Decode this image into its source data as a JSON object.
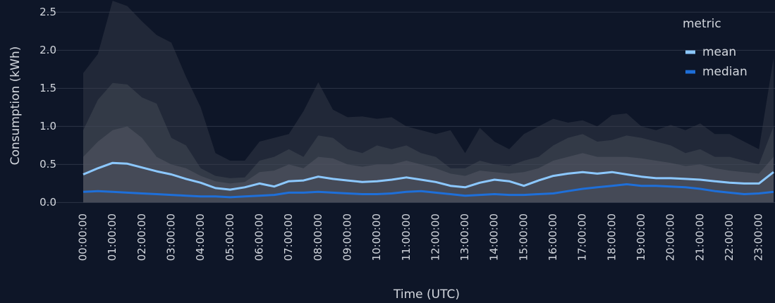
{
  "chart_data": {
    "type": "line",
    "x_label": "Time (UTC)",
    "y_label": "Consumption (kWh)",
    "categories": [
      "00:00:00",
      null,
      "01:00:00",
      null,
      "02:00:00",
      null,
      "03:00:00",
      null,
      "04:00:00",
      null,
      "05:00:00",
      null,
      "06:00:00",
      null,
      "07:00:00",
      null,
      "08:00:00",
      null,
      "09:00:00",
      null,
      "10:00:00",
      null,
      "11:00:00",
      null,
      "12:00:00",
      null,
      "13:00:00",
      null,
      "14:00:00",
      null,
      "15:00:00",
      null,
      "16:00:00",
      null,
      "17:00:00",
      null,
      "18:00:00",
      null,
      "19:00:00",
      null,
      "20:00:00",
      null,
      "21:00:00",
      null,
      "22:00:00",
      null,
      "23:00:00",
      null
    ],
    "ylim": [
      -0.07,
      2.66
    ],
    "yticks": [
      {
        "value": 0,
        "label": "0.0"
      },
      0.5,
      {
        "value": 1,
        "label": "1.0"
      },
      1.5,
      {
        "value": 2,
        "label": "2.0"
      },
      2.5
    ],
    "grid": true,
    "legend_title": "metric",
    "legend_position": "upper right",
    "bands": [
      {
        "color": "#3a3f4b",
        "values": [
          1.7,
          1.95,
          2.65,
          2.58,
          2.38,
          2.2,
          2.1,
          1.65,
          1.25,
          0.65,
          0.55,
          0.55,
          0.8,
          0.85,
          0.9,
          1.2,
          1.58,
          1.22,
          1.12,
          1.13,
          1.1,
          1.12,
          1.0,
          0.95,
          0.9,
          0.95,
          0.65,
          0.98,
          0.8,
          0.7,
          0.9,
          1.0,
          1.1,
          1.05,
          1.08,
          1.0,
          1.15,
          1.17,
          1.0,
          0.95,
          1.02,
          0.95,
          1.04,
          0.9,
          0.9,
          0.8,
          0.7,
          1.9
        ]
      },
      {
        "color": "#4a4f5a",
        "values": [
          0.95,
          1.35,
          1.57,
          1.55,
          1.38,
          1.3,
          0.85,
          0.75,
          0.45,
          0.35,
          0.32,
          0.33,
          0.55,
          0.6,
          0.7,
          0.6,
          0.88,
          0.85,
          0.7,
          0.65,
          0.75,
          0.7,
          0.75,
          0.65,
          0.6,
          0.45,
          0.45,
          0.55,
          0.5,
          0.48,
          0.55,
          0.6,
          0.75,
          0.85,
          0.9,
          0.8,
          0.82,
          0.88,
          0.85,
          0.8,
          0.75,
          0.65,
          0.7,
          0.6,
          0.6,
          0.55,
          0.5,
          1.0
        ]
      },
      {
        "color": "#5a5f6a",
        "values": [
          0.6,
          0.8,
          0.95,
          1.0,
          0.85,
          0.6,
          0.5,
          0.45,
          0.35,
          0.28,
          0.25,
          0.27,
          0.4,
          0.42,
          0.5,
          0.45,
          0.6,
          0.58,
          0.5,
          0.47,
          0.5,
          0.5,
          0.55,
          0.5,
          0.45,
          0.38,
          0.35,
          0.42,
          0.4,
          0.38,
          0.4,
          0.45,
          0.55,
          0.6,
          0.65,
          0.6,
          0.6,
          0.6,
          0.58,
          0.55,
          0.52,
          0.48,
          0.5,
          0.45,
          0.42,
          0.4,
          0.38,
          0.6
        ]
      }
    ],
    "series": [
      {
        "name": "mean",
        "color": "#8cc8ff",
        "values": [
          0.37,
          0.45,
          0.52,
          0.51,
          0.46,
          0.41,
          0.37,
          0.31,
          0.26,
          0.19,
          0.17,
          0.2,
          0.25,
          0.21,
          0.28,
          0.29,
          0.34,
          0.31,
          0.29,
          0.27,
          0.28,
          0.3,
          0.33,
          0.3,
          0.27,
          0.22,
          0.2,
          0.26,
          0.3,
          0.28,
          0.22,
          0.29,
          0.35,
          0.38,
          0.4,
          0.38,
          0.4,
          0.37,
          0.34,
          0.32,
          0.32,
          0.31,
          0.3,
          0.28,
          0.26,
          0.25,
          0.25,
          0.4
        ]
      },
      {
        "name": "median",
        "color": "#1e6fd9",
        "values": [
          0.14,
          0.15,
          0.14,
          0.13,
          0.12,
          0.11,
          0.1,
          0.09,
          0.08,
          0.08,
          0.07,
          0.08,
          0.09,
          0.1,
          0.13,
          0.13,
          0.14,
          0.13,
          0.12,
          0.11,
          0.11,
          0.12,
          0.14,
          0.15,
          0.13,
          0.11,
          0.09,
          0.1,
          0.11,
          0.1,
          0.1,
          0.11,
          0.12,
          0.15,
          0.18,
          0.2,
          0.22,
          0.24,
          0.22,
          0.22,
          0.21,
          0.2,
          0.18,
          0.15,
          0.13,
          0.11,
          0.12,
          0.14
        ]
      }
    ]
  }
}
